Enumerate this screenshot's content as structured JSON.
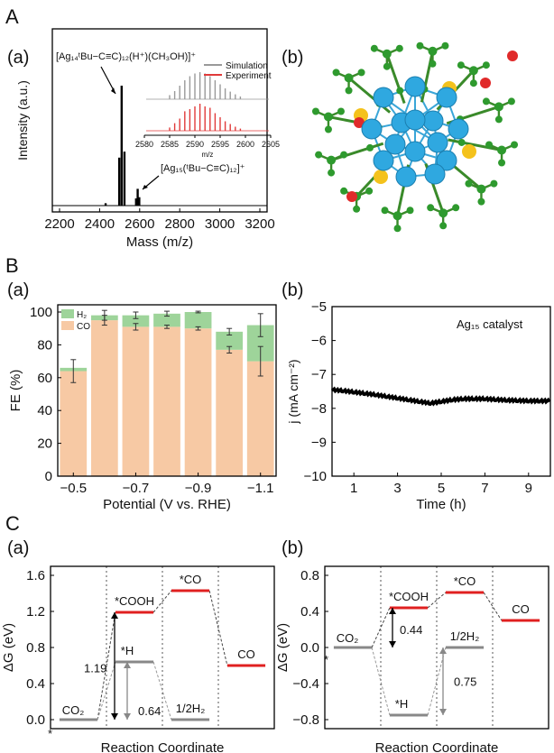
{
  "panels": {
    "A": "A",
    "B": "B",
    "C": "C",
    "Aa": "(a)",
    "Ab": "(b)",
    "Ba": "(a)",
    "Bb": "(b)",
    "Ca": "(a)",
    "Cb": "(b)"
  },
  "chart_data": [
    {
      "id": "mass-spectrum",
      "type": "line",
      "xlabel": "Mass (m/z)",
      "ylabel": "Intensity (a.u.)",
      "xlim": [
        2200,
        3200
      ],
      "x_ticks": [
        "2200",
        "2400",
        "2600",
        "2800",
        "3000",
        "3200"
      ],
      "x_tick_values": [
        2200,
        2400,
        2600,
        2800,
        3000,
        3200
      ],
      "ylim": [
        0,
        1
      ],
      "peaks": [
        {
          "x": 2510,
          "y": 1.0
        },
        {
          "x": 2498,
          "y": 0.4
        },
        {
          "x": 2524,
          "y": 0.45
        },
        {
          "x": 2590,
          "y": 0.14
        },
        {
          "x": 2582,
          "y": 0.06
        },
        {
          "x": 2598,
          "y": 0.07
        },
        {
          "x": 2430,
          "y": 0.02
        }
      ],
      "annotations": [
        "[Ag₁₄ᵗBu−C≡C)₁₂(H⁺)(CH₃OH)]⁺",
        "[Ag₁₅(ᵗBu−C≡C)₁₂]⁺"
      ],
      "inset": {
        "xlabel": "m/z",
        "xlim": [
          2580,
          2605
        ],
        "x_ticks": [
          "2580",
          "2585",
          "2590",
          "2595",
          "2600",
          "2605"
        ],
        "x_tick_values": [
          2580,
          2585,
          2590,
          2595,
          2600,
          2605
        ],
        "legend": [
          "Simulation",
          "Experiment"
        ],
        "colors": {
          "Simulation": "#999999",
          "Experiment": "#e03a3a"
        },
        "simulation_peaks": [
          2585,
          2586,
          2587,
          2588,
          2589,
          2590,
          2591,
          2592,
          2593,
          2594,
          2595,
          2596,
          2597,
          2598,
          2599
        ],
        "simulation_heights": [
          0.15,
          0.3,
          0.5,
          0.7,
          0.85,
          0.95,
          1.0,
          0.95,
          0.85,
          0.7,
          0.55,
          0.4,
          0.28,
          0.18,
          0.1
        ],
        "experiment_heights": [
          0.12,
          0.28,
          0.45,
          0.72,
          0.8,
          0.9,
          1.0,
          0.9,
          0.85,
          0.65,
          0.5,
          0.35,
          0.25,
          0.15,
          0.08
        ]
      }
    },
    {
      "id": "faradaic-efficiency",
      "type": "bar",
      "stacked": true,
      "xlabel": "Potential (V vs. RHE)",
      "ylabel": "FE (%)",
      "ylim": [
        0,
        100
      ],
      "y_ticks": [
        "0",
        "20",
        "40",
        "60",
        "80",
        "100"
      ],
      "y_tick_values": [
        0,
        20,
        40,
        60,
        80,
        100
      ],
      "x_ticks": [
        "−0.5",
        "−0.7",
        "−0.9",
        "−1.1"
      ],
      "x_tick_values": [
        -0.5,
        -0.7,
        -0.9,
        -1.1
      ],
      "categories": [
        -0.5,
        -0.6,
        -0.7,
        -0.8,
        -0.9,
        -1.0,
        -1.1
      ],
      "series": [
        {
          "name": "CO",
          "values": [
            64,
            95,
            91,
            91,
            90,
            77,
            70
          ],
          "errors": [
            7,
            3,
            2,
            1,
            1,
            2,
            9
          ],
          "color": "#f7c9a4"
        },
        {
          "name": "H₂",
          "values": [
            2,
            3,
            7,
            8,
            10,
            11,
            22
          ],
          "errors": [
            0,
            3,
            2,
            1.5,
            0.5,
            2,
            7
          ],
          "color": "#9ed49a"
        }
      ],
      "legend": [
        "H₂",
        "CO"
      ],
      "legend_position": "top-left"
    },
    {
      "id": "current-density",
      "type": "line",
      "xlabel": "Time (h)",
      "ylabel": "j (mA cm⁻²)",
      "xlim": [
        0,
        10
      ],
      "ylim": [
        -10,
        -5
      ],
      "x_ticks": [
        "1",
        "3",
        "5",
        "7",
        "9"
      ],
      "x_tick_values": [
        1,
        3,
        5,
        7,
        9
      ],
      "y_ticks": [
        "−5",
        "−6",
        "−7",
        "−8",
        "−9",
        "−10"
      ],
      "y_tick_values": [
        -5,
        -6,
        -7,
        -8,
        -9,
        -10
      ],
      "x": [
        0,
        0.5,
        1,
        1.5,
        2,
        2.5,
        3,
        3.5,
        4,
        4.5,
        5,
        5.5,
        6,
        6.5,
        7,
        7.5,
        8,
        8.5,
        9,
        9.5,
        10
      ],
      "y": [
        -7.45,
        -7.48,
        -7.52,
        -7.56,
        -7.6,
        -7.65,
        -7.7,
        -7.75,
        -7.8,
        -7.85,
        -7.8,
        -7.75,
        -7.72,
        -7.72,
        -7.72,
        -7.74,
        -7.76,
        -7.77,
        -7.78,
        -7.78,
        -7.78
      ],
      "annotation": "Ag₁₅ catalyst"
    },
    {
      "id": "free-energy-a",
      "type": "line",
      "xlabel": "Reaction Coordinate",
      "ylabel": "ΔG (eV)",
      "ylim": [
        -0.1,
        1.7
      ],
      "y_ticks": [
        "0.0",
        "0.4",
        "0.8",
        "1.2",
        "1.6"
      ],
      "y_tick_values": [
        0.0,
        0.4,
        0.8,
        1.2,
        1.6
      ],
      "states": [
        {
          "label": "CO₂",
          "pos": 0,
          "energy": 0.0,
          "path": "start",
          "color": "#888888"
        },
        {
          "label": "*COOH",
          "pos": 1,
          "energy": 1.19,
          "path": "CO",
          "color": "#e02020"
        },
        {
          "label": "*CO",
          "pos": 2,
          "energy": 1.43,
          "path": "CO",
          "color": "#e02020"
        },
        {
          "label": "CO",
          "pos": 3,
          "energy": 0.6,
          "path": "CO",
          "color": "#e02020"
        },
        {
          "label": "*H",
          "pos": 1,
          "energy": 0.64,
          "path": "H2",
          "color": "#888888"
        },
        {
          "label": "1/2H₂",
          "pos": 2,
          "energy": 0.0,
          "path": "H2",
          "color": "#888888"
        }
      ],
      "arrows": [
        {
          "label": "1.19",
          "from": 0.0,
          "to": 1.19
        },
        {
          "label": "0.64",
          "from": 0.0,
          "to": 0.64
        }
      ],
      "extra_labels": [
        "*"
      ]
    },
    {
      "id": "free-energy-b",
      "type": "line",
      "xlabel": "Reaction Coordinate",
      "ylabel": "ΔG (eV)",
      "ylim": [
        -0.9,
        0.9
      ],
      "y_ticks": [
        "−0.8",
        "−0.4",
        "0.0",
        "0.4",
        "0.8"
      ],
      "y_tick_values": [
        -0.8,
        -0.4,
        0.0,
        0.4,
        0.8
      ],
      "states": [
        {
          "label": "CO₂",
          "pos": 0,
          "energy": 0.0,
          "path": "start",
          "color": "#888888"
        },
        {
          "label": "*COOH",
          "pos": 1,
          "energy": 0.44,
          "path": "CO",
          "color": "#e02020"
        },
        {
          "label": "*CO",
          "pos": 2,
          "energy": 0.61,
          "path": "CO",
          "color": "#e02020"
        },
        {
          "label": "CO",
          "pos": 3,
          "energy": 0.3,
          "path": "CO",
          "color": "#e02020"
        },
        {
          "label": "*H",
          "pos": 1,
          "energy": -0.75,
          "path": "H2",
          "color": "#888888"
        },
        {
          "label": "1/2H₂",
          "pos": 2,
          "energy": 0.0,
          "path": "H2",
          "color": "#888888"
        }
      ],
      "arrows": [
        {
          "label": "0.44",
          "from": 0.0,
          "to": 0.44
        },
        {
          "label": "0.75",
          "from": -0.75,
          "to": 0.0
        }
      ],
      "extra_labels": [
        "*"
      ]
    }
  ]
}
